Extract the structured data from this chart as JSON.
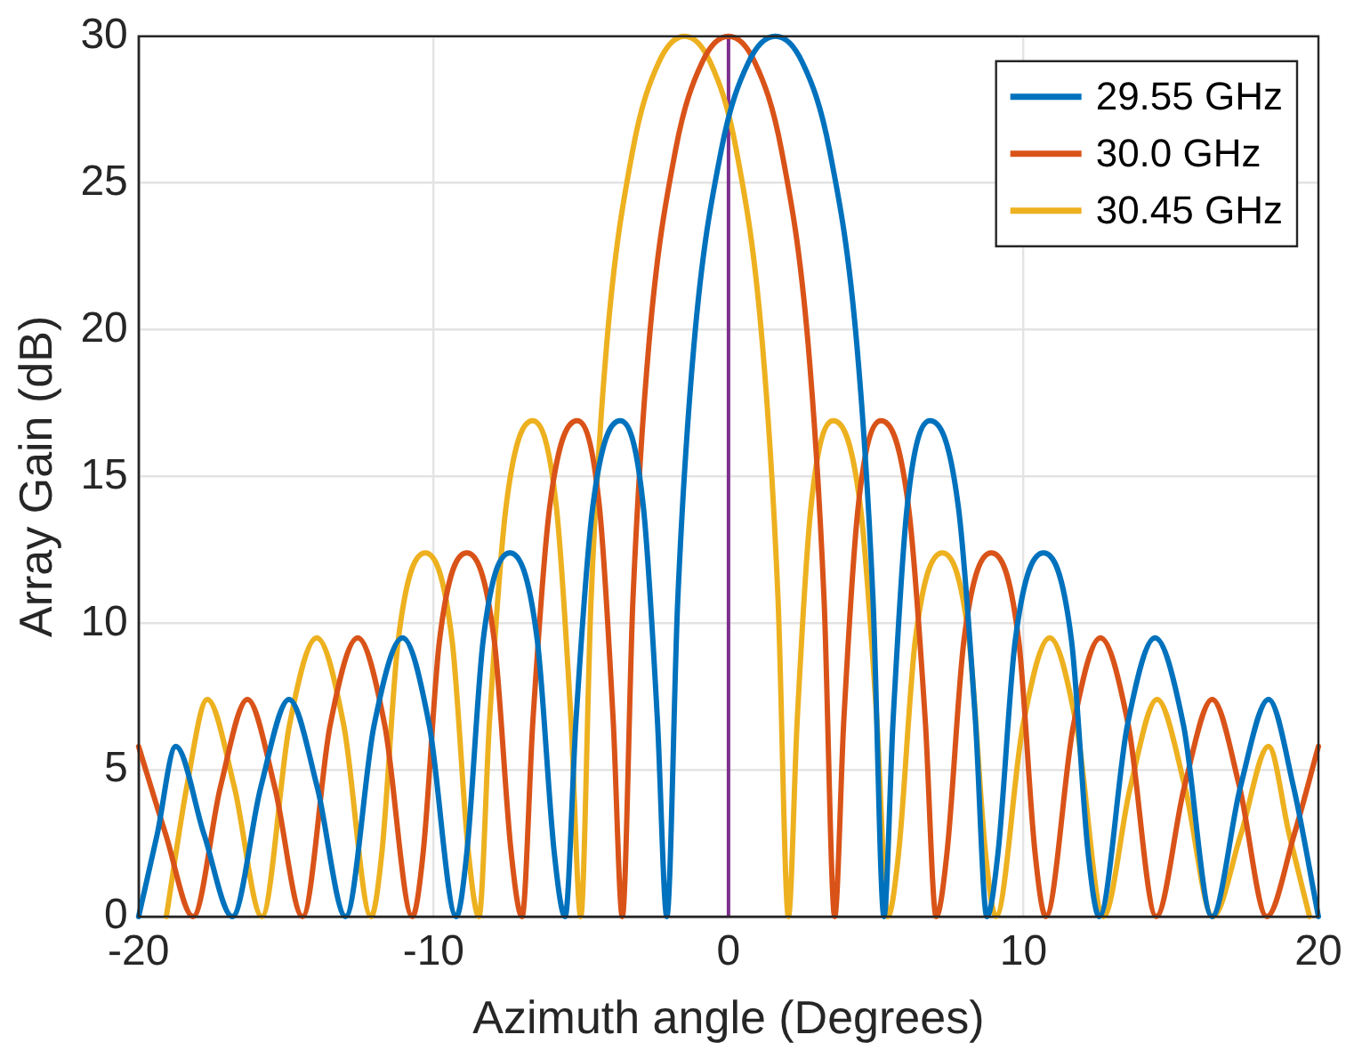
{
  "chart_data": {
    "type": "line",
    "xlabel": "Azimuth angle (Degrees)",
    "ylabel": "Array Gain (dB)",
    "xlim": [
      -20,
      20
    ],
    "xticks": [
      -20,
      -10,
      0,
      10,
      20
    ],
    "ylim": [
      0,
      30
    ],
    "yticks": [
      0,
      5,
      10,
      15,
      20,
      25,
      30
    ],
    "grid": true,
    "legend": "top right",
    "ref_lines": [
      {
        "axis": "x",
        "value": 0,
        "color": "#7e2f8e"
      }
    ],
    "series": [
      {
        "name": "29.55 GHz",
        "color": "#0072bd",
        "x": [
          -20,
          -19.37,
          -18.74,
          -17.78,
          -16.82,
          -15.86,
          -14.9,
          -13.94,
          -12.98,
          -12.02,
          -11.05,
          -10.14,
          -9.23,
          -8.87,
          -8.32,
          -7.41,
          -6.48,
          -5.91,
          -5.54,
          -5.17,
          -4.61,
          -3.67,
          -2.88,
          -2.41,
          -2.09,
          -1.72,
          -1.17,
          -0.25,
          0.67,
          1.59,
          2.51,
          3.43,
          4.35,
          4.9,
          5.27,
          5.58,
          6.05,
          6.83,
          7.8,
          8.37,
          8.76,
          9.14,
          9.72,
          10.68,
          11.63,
          12.19,
          12.57,
          13.52,
          14.46,
          15.43,
          16.39,
          17.35,
          18.31,
          19.16,
          20
        ],
        "values": [
          0,
          2.8,
          5.8,
          2.8,
          0,
          4.4,
          7.4,
          4.4,
          0,
          6.5,
          9.5,
          6.5,
          0,
          2.2,
          9.4,
          12.4,
          9.4,
          2.2,
          0,
          6.7,
          13.9,
          16.9,
          13.9,
          6.7,
          0,
          10.8,
          19.5,
          26.1,
          29.1,
          30,
          29.1,
          26.1,
          19.5,
          10.8,
          0,
          6.7,
          13.9,
          16.9,
          13.9,
          6.7,
          0,
          2.2,
          9.4,
          12.4,
          9.4,
          2.2,
          0,
          6.5,
          9.5,
          6.5,
          0,
          4.4,
          7.4,
          4.4,
          0
        ]
      },
      {
        "name": "30.0 GHz",
        "color": "#d95319",
        "x": [
          -20,
          -19.08,
          -18.15,
          -17.23,
          -16.31,
          -15.38,
          -14.44,
          -13.51,
          -12.57,
          -11.65,
          -10.72,
          -10.35,
          -9.8,
          -8.87,
          -7.94,
          -7.37,
          -7,
          -6.63,
          -6.07,
          -5.13,
          -4.37,
          -3.91,
          -3.6,
          -3.24,
          -2.7,
          -1.8,
          -0.9,
          0,
          0.9,
          1.8,
          2.7,
          3.24,
          3.6,
          3.91,
          4.39,
          5.17,
          6.11,
          6.67,
          7.04,
          7.41,
          7.98,
          8.91,
          9.84,
          10.39,
          10.76,
          11.69,
          12.61,
          13.56,
          14.5,
          15.45,
          16.4,
          17.33,
          18.25,
          19.18,
          20
        ],
        "values": [
          5.8,
          2.8,
          0,
          4.4,
          7.4,
          4.4,
          0,
          6.5,
          9.5,
          6.5,
          0,
          2.2,
          9.4,
          12.4,
          9.4,
          2.2,
          0,
          6.7,
          13.9,
          16.9,
          13.9,
          6.7,
          0,
          10.8,
          19.5,
          26.1,
          29.1,
          30,
          29.1,
          26.1,
          19.5,
          10.8,
          0,
          6.7,
          13.9,
          16.9,
          13.9,
          6.7,
          0,
          2.2,
          9.4,
          12.4,
          9.4,
          2.2,
          0,
          6.5,
          9.5,
          6.5,
          0,
          4.4,
          7.4,
          4.4,
          0,
          2.8,
          5.8
        ]
      },
      {
        "name": "30.45 GHz",
        "color": "#edb120",
        "x": [
          -19.06,
          -18.37,
          -17.67,
          -16.75,
          -15.82,
          -14.89,
          -13.96,
          -13.04,
          -12.12,
          -11.75,
          -11.2,
          -10.28,
          -9.37,
          -8.82,
          -8.46,
          -8.1,
          -7.55,
          -6.64,
          -5.83,
          -5.34,
          -5.01,
          -4.66,
          -4.13,
          -3.25,
          -2.37,
          -1.49,
          -0.61,
          0.27,
          1.15,
          1.68,
          2.03,
          2.33,
          2.79,
          3.55,
          4.48,
          5.03,
          5.4,
          5.77,
          6.33,
          7.25,
          8.16,
          8.71,
          9.07,
          9.98,
          10.89,
          11.8,
          12.71,
          13.62,
          14.53,
          15.48,
          16.42,
          17.37,
          18.31,
          19.01,
          19.7
        ],
        "values": [
          0,
          4.4,
          7.4,
          4.4,
          0,
          6.5,
          9.5,
          6.5,
          0,
          2.2,
          9.4,
          12.4,
          9.4,
          2.2,
          0,
          6.7,
          13.9,
          16.9,
          13.9,
          6.7,
          0,
          10.8,
          19.5,
          26.1,
          29.1,
          30,
          29.1,
          26.1,
          19.5,
          10.8,
          0,
          6.7,
          13.9,
          16.9,
          13.9,
          6.7,
          0,
          2.2,
          9.4,
          12.4,
          9.4,
          2.2,
          0,
          6.5,
          9.5,
          6.5,
          0,
          4.4,
          7.4,
          4.4,
          0,
          2.8,
          5.8,
          2.8,
          0
        ]
      }
    ]
  }
}
